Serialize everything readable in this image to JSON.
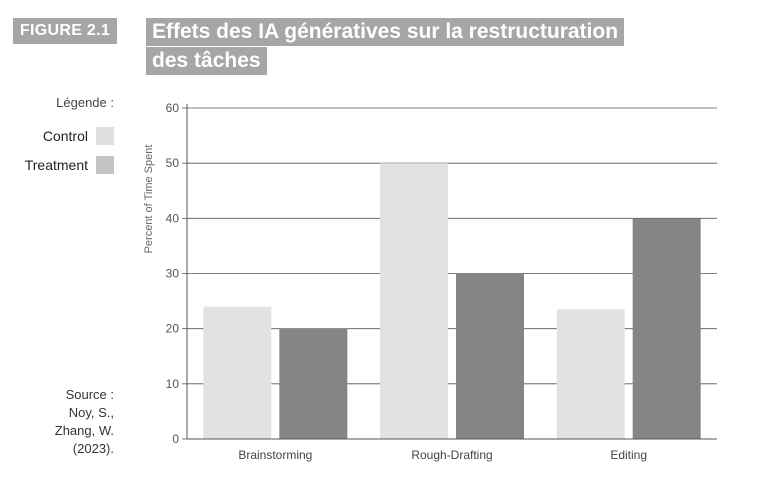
{
  "figure_label": "FIGURE 2.1",
  "title_lines": [
    "Effets des IA génératives sur la restructuration",
    "des tâches"
  ],
  "legend": {
    "title": "Légende :",
    "items": [
      {
        "label": "Control",
        "color": "#e0e0e0"
      },
      {
        "label": "Treatment",
        "color": "#c4c4c4"
      }
    ]
  },
  "source_lines": [
    "Source :",
    "Noy, S.,",
    "Zhang, W.",
    "(2023)."
  ],
  "colors": {
    "control_bar": "#e2e2e2",
    "treatment_bar": "#858585",
    "header_bg": "#a6a6a6"
  },
  "chart_data": {
    "type": "bar",
    "title": "Effets des IA génératives sur la restructuration des tâches",
    "ylabel": "Percent of Time Spent",
    "xlabel": "",
    "categories": [
      "Brainstorming",
      "Rough-Drafting",
      "Editing"
    ],
    "series": [
      {
        "name": "Control",
        "values": [
          24,
          50,
          23.5
        ]
      },
      {
        "name": "Treatment",
        "values": [
          20,
          30,
          40
        ]
      }
    ],
    "ylim": [
      0,
      60
    ],
    "yticks": [
      0,
      10,
      20,
      30,
      40,
      50,
      60
    ],
    "grid": true,
    "legend_position": "left"
  }
}
